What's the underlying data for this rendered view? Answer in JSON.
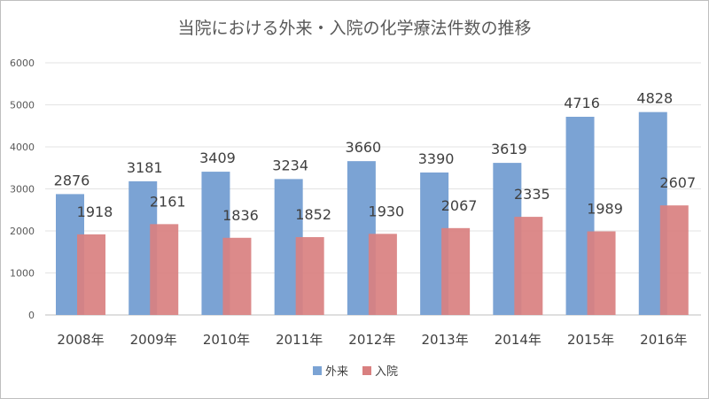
{
  "chart_data": {
    "type": "bar",
    "title": "当院における外来・入院の化学療法件数の推移",
    "xlabel": "",
    "ylabel": "",
    "categories": [
      "2008年",
      "2009年",
      "2010年",
      "2011年",
      "2012年",
      "2013年",
      "2014年",
      "2015年",
      "2016年"
    ],
    "series": [
      {
        "name": "外来",
        "color": "#7ba3d4",
        "values": [
          2876,
          3181,
          3409,
          3234,
          3660,
          3390,
          3619,
          4716,
          4828
        ]
      },
      {
        "name": "入院",
        "color": "#d98080",
        "values": [
          1918,
          2161,
          1836,
          1852,
          1930,
          2067,
          2335,
          1989,
          2607
        ]
      }
    ],
    "ylim": [
      0,
      6000
    ],
    "yticks": [
      0,
      1000,
      2000,
      3000,
      4000,
      5000,
      6000
    ],
    "grid": true,
    "legend": "bottom",
    "data_labels": true
  }
}
